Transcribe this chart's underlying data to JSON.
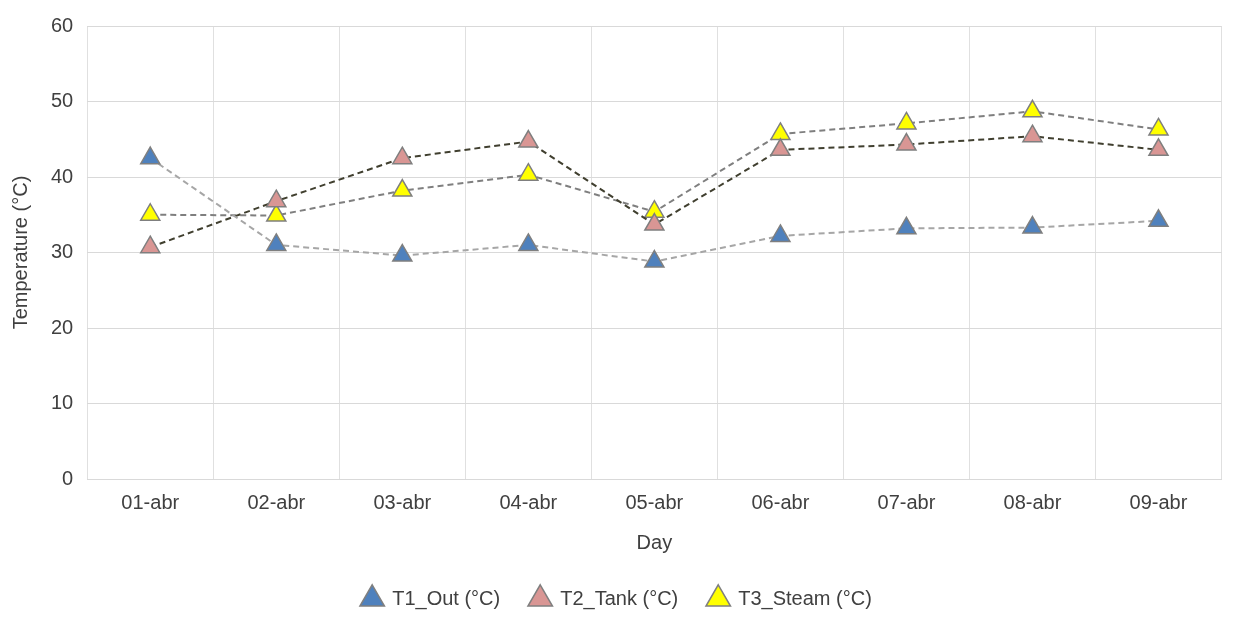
{
  "chart_data": {
    "type": "line",
    "xlabel": "Day",
    "ylabel": "Temperature (°C)",
    "categories": [
      "01-abr",
      "02-abr",
      "03-abr",
      "04-abr",
      "05-abr",
      "06-abr",
      "07-abr",
      "08-abr",
      "09-abr"
    ],
    "series": [
      {
        "name": "T1_Out (°C)",
        "color": "#4f81bd",
        "values": [
          42.5,
          31.0,
          29.6,
          31.0,
          28.8,
          32.2,
          33.2,
          33.3,
          34.2
        ]
      },
      {
        "name": "T2_Tank (°C)",
        "color": "#d99694",
        "values": [
          30.7,
          36.8,
          42.5,
          44.7,
          33.7,
          43.6,
          44.3,
          45.4,
          43.6
        ]
      },
      {
        "name": "T3_Steam (°C)",
        "color": "#ffff00",
        "values": [
          35.0,
          34.9,
          38.2,
          40.3,
          35.4,
          45.7,
          47.1,
          48.7,
          46.3
        ]
      }
    ],
    "ylim": [
      0,
      60
    ],
    "yticks": [
      0,
      10,
      20,
      30,
      40,
      50,
      60
    ],
    "grid": true,
    "legend": "bottom",
    "marker": "triangle",
    "line_style": "dashed"
  }
}
